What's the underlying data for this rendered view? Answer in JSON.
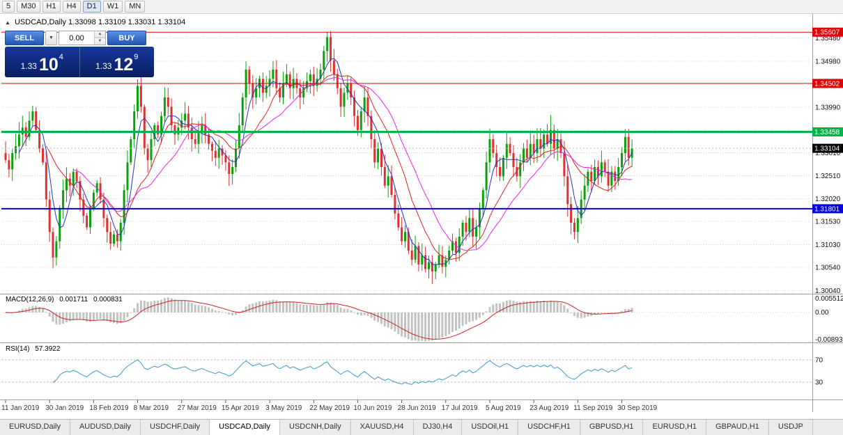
{
  "toolbar": {
    "timeframes": [
      "5",
      "M30",
      "H1",
      "H4",
      "D1",
      "W1",
      "MN"
    ],
    "active": "D1"
  },
  "chart_title": {
    "toggle": "▲",
    "symbol": "USDCAD,Daily",
    "ohlc": "1.33098 1.33109 1.33031 1.33104"
  },
  "one_click": {
    "sell_label": "SELL",
    "buy_label": "BUY",
    "lot": "0.00",
    "sell_big": "1.33",
    "sell_pips": "10",
    "sell_point": "4",
    "buy_big": "1.33",
    "buy_pips": "12",
    "buy_point": "9"
  },
  "price_axis": [
    "1.35480",
    "1.34980",
    "1.34480",
    "1.33990",
    "1.33490",
    "1.33010",
    "1.32510",
    "1.32020",
    "1.31530",
    "1.31030",
    "1.30540",
    "1.30040"
  ],
  "date_axis": [
    "11 Jan 2019",
    "30 Jan 2019",
    "18 Feb 2019",
    "8 Mar 2019",
    "27 Mar 2019",
    "15 Apr 2019",
    "3 May 2019",
    "22 May 2019",
    "10 Jun 2019",
    "28 Jun 2019",
    "17 Jul 2019",
    "5 Aug 2019",
    "23 Aug 2019",
    "11 Sep 2019",
    "30 Sep 2019"
  ],
  "levels": [
    {
      "label": "1.35607",
      "value": 1.35607,
      "color": "#e00000",
      "width": 1
    },
    {
      "label": "1.34502",
      "value": 1.34502,
      "color": "#e00000",
      "width": 1
    },
    {
      "label": "1.33458",
      "value": 1.33458,
      "color": "#00b44a",
      "width": 3
    },
    {
      "label": "1.31801",
      "value": 1.31801,
      "color": "#0000e0",
      "width": 2
    }
  ],
  "current_price": {
    "label": "1.33104",
    "value": 1.33104,
    "color": "#000000"
  },
  "tabs": {
    "active_index": 3,
    "items": [
      "EURUSD,Daily",
      "AUDUSD,Daily",
      "USDCHF,Daily",
      "USDCAD,Daily",
      "USDCNH,Daily",
      "XAUUSD,H4",
      "DJ30,H4",
      "USDOil,H1",
      "USDCHF,H1",
      "GBPUSD,H1",
      "EURUSD,H1",
      "GBPAUD,H1",
      "USDJP"
    ]
  },
  "chart_data": {
    "type": "candlestick",
    "symbol": "USDCAD",
    "timeframe": "Daily",
    "open_first": 1.33,
    "closes": [
      1.3285,
      1.3265,
      1.33,
      1.3315,
      1.334,
      1.3355,
      1.3335,
      1.337,
      1.339,
      1.335,
      1.331,
      1.328,
      1.32,
      1.313,
      1.3075,
      1.311,
      1.318,
      1.322,
      1.3245,
      1.323,
      1.326,
      1.324,
      1.32,
      1.3165,
      1.314,
      1.318,
      1.3215,
      1.3235,
      1.32,
      1.316,
      1.313,
      1.3105,
      1.3125,
      1.311,
      1.315,
      1.322,
      1.328,
      1.333,
      1.339,
      1.3445,
      1.34,
      1.331,
      1.3285,
      1.333,
      1.336,
      1.334,
      1.338,
      1.342,
      1.34,
      1.336,
      1.334,
      1.3355,
      1.337,
      1.3385,
      1.3355,
      1.333,
      1.332,
      1.3345,
      1.336,
      1.334,
      1.332,
      1.3305,
      1.329,
      1.331,
      1.3295,
      1.328,
      1.3255,
      1.327,
      1.331,
      1.336,
      1.342,
      1.348,
      1.345,
      1.342,
      1.344,
      1.346,
      1.343,
      1.3445,
      1.346,
      1.348,
      1.344,
      1.342,
      1.345,
      1.347,
      1.344,
      1.346,
      1.344,
      1.342,
      1.344,
      1.3455,
      1.347,
      1.3445,
      1.346,
      1.348,
      1.352,
      1.355,
      1.35,
      1.347,
      1.344,
      1.34,
      1.343,
      1.345,
      1.342,
      1.338,
      1.335,
      1.339,
      1.342,
      1.338,
      1.333,
      1.328,
      1.331,
      1.327,
      1.323,
      1.325,
      1.321,
      1.317,
      1.314,
      1.311,
      1.313,
      1.309,
      1.307,
      1.31,
      1.306,
      1.308,
      1.305,
      1.3065,
      1.3045,
      1.306,
      1.308,
      1.3055,
      1.307,
      1.309,
      1.311,
      1.3085,
      1.312,
      1.315,
      1.313,
      1.316,
      1.312,
      1.314,
      1.318,
      1.322,
      1.328,
      1.333,
      1.33,
      1.327,
      1.325,
      1.329,
      1.332,
      1.33,
      1.327,
      1.325,
      1.328,
      1.331,
      1.329,
      1.332,
      1.33,
      1.333,
      1.331,
      1.334,
      1.332,
      1.335,
      1.331,
      1.333,
      1.33,
      1.325,
      1.319,
      1.315,
      1.313,
      1.316,
      1.32,
      1.323,
      1.326,
      1.324,
      1.327,
      1.325,
      1.328,
      1.326,
      1.323,
      1.326,
      1.324,
      1.327,
      1.33,
      1.3335,
      1.329,
      1.33104
    ],
    "date_indices": [
      0,
      13,
      26,
      39,
      52,
      65,
      78,
      91,
      104,
      117,
      130,
      143,
      156,
      169,
      182
    ],
    "wick_overrides": {
      "14": {
        "low": 1.3052
      },
      "95": {
        "high": 1.35607
      },
      "126": {
        "low": 1.3018
      },
      "161": {
        "high": 1.3382
      }
    },
    "up_color": "#0aa10a",
    "down_color": "#e03030",
    "moving_averages": [
      {
        "period": 5,
        "color": "#2233cc"
      },
      {
        "period": 13,
        "color": "#dd2222"
      },
      {
        "period": 21,
        "color": "#ee22ee"
      }
    ],
    "indicators": {
      "macd": {
        "label": "MACD(12,26,9)",
        "main_value": "0.001711",
        "signal_value": "0.000831",
        "axis": [
          {
            "label": "0.005512",
            "value": 0.005512
          },
          {
            "label": "0.00",
            "value": 0
          },
          {
            "label": "-0.008938",
            "value": -0.008938
          }
        ],
        "histogram_color": "#c2c2c2",
        "signal_color": "#cc2222"
      },
      "rsi": {
        "label": "RSI(14)",
        "value": "57.3922",
        "line_color": "#3d97cf",
        "levels": [
          {
            "label": "70",
            "value": 70
          },
          {
            "label": "30",
            "value": 30
          }
        ]
      }
    },
    "price_range": {
      "top": 1.3594,
      "bottom": 1.2997
    }
  }
}
